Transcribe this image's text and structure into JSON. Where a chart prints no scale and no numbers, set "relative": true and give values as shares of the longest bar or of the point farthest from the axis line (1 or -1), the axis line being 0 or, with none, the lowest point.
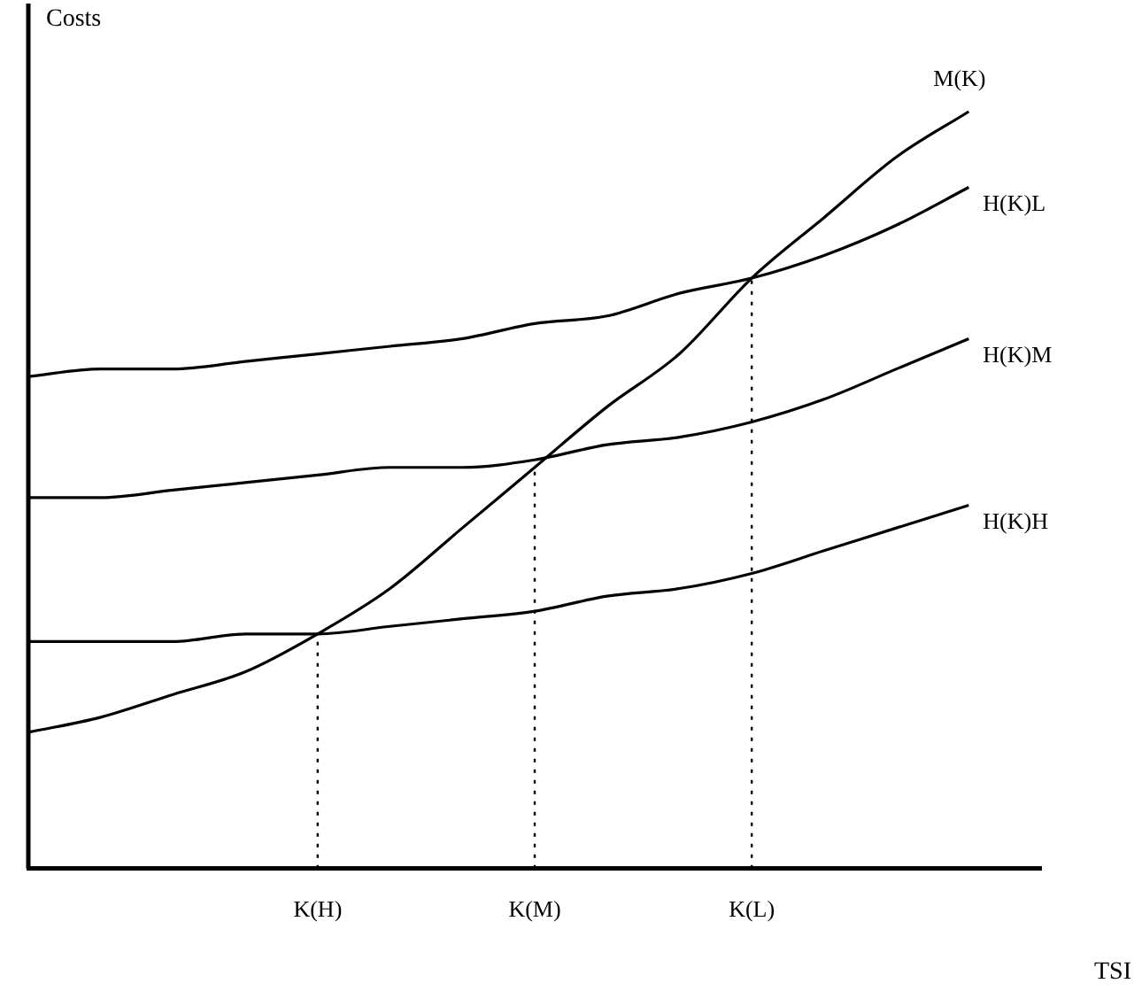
{
  "chart_data": {
    "type": "line",
    "xlabel": "TSI",
    "ylabel": "Costs",
    "relative": true,
    "grid": false,
    "legend": false,
    "marker": "none",
    "line_style": "solid",
    "categories": [
      null,
      null,
      null,
      null,
      "K(H)",
      null,
      null,
      "K(M)",
      null,
      null,
      "K(L)",
      null,
      null,
      null,
      null
    ],
    "series": [
      {
        "name": "M(K)",
        "color": "#000000",
        "values": [
          0.18,
          0.2,
          0.23,
          0.26,
          0.31,
          0.37,
          0.45,
          0.53,
          0.61,
          0.68,
          0.78,
          0.86,
          0.94,
          1,
          null
        ]
      },
      {
        "name": "H(K)L",
        "color": "#000000",
        "values": [
          0.65,
          0.66,
          0.66,
          0.67,
          0.68,
          0.69,
          0.7,
          0.72,
          0.73,
          0.76,
          0.78,
          0.81,
          0.85,
          0.9,
          null
        ]
      },
      {
        "name": "H(K)M",
        "color": "#000000",
        "values": [
          0.49,
          0.49,
          0.5,
          0.51,
          0.52,
          0.53,
          0.53,
          0.54,
          0.56,
          0.57,
          0.59,
          0.62,
          0.66,
          0.7,
          null
        ]
      },
      {
        "name": "H(K)H",
        "color": "#000000",
        "values": [
          0.3,
          0.3,
          0.3,
          0.31,
          0.31,
          0.32,
          0.33,
          0.34,
          0.36,
          0.37,
          0.39,
          0.42,
          0.45,
          0.48,
          null
        ]
      }
    ],
    "ref_lines": [
      {
        "axis": "x",
        "value": "K(H)",
        "line_style": "dotted",
        "color": "#000000"
      },
      {
        "axis": "x",
        "value": "K(M)",
        "line_style": "dotted",
        "color": "#000000"
      },
      {
        "axis": "x",
        "value": "K(L)",
        "line_style": "dotted",
        "color": "#000000"
      }
    ]
  }
}
